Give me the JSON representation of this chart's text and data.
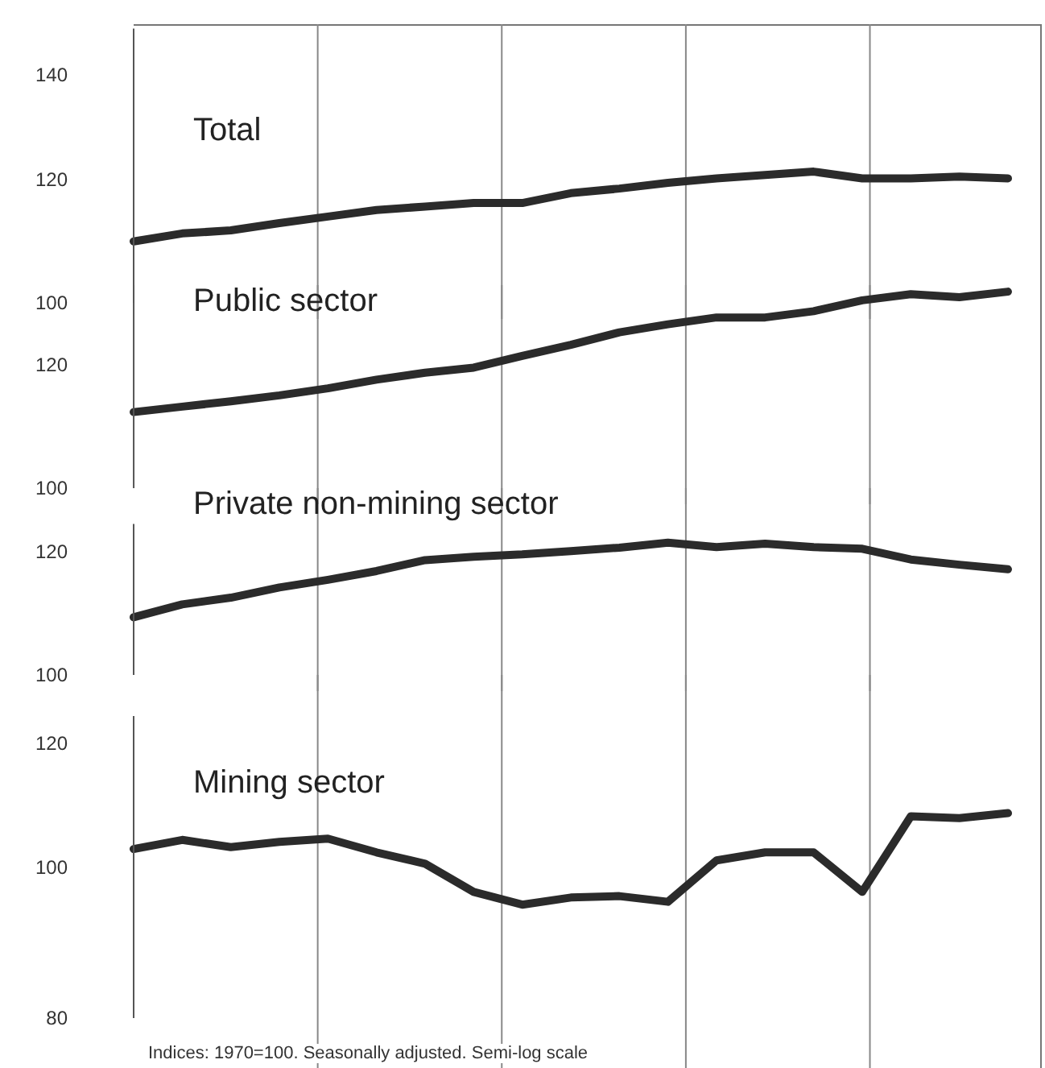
{
  "chart_data": [
    {
      "type": "line",
      "title": "Total",
      "categories": [
        null,
        null,
        null,
        null,
        null,
        null,
        null,
        null,
        null,
        null,
        null,
        null,
        null,
        null,
        null,
        null,
        null,
        null,
        null
      ],
      "log": true,
      "ylim": [
        100,
        150
      ],
      "yticks": [
        100,
        120,
        140
      ],
      "grid": "x",
      "tick_labels": "y",
      "series": [
        {
          "color": "#2b2b2b",
          "values": [
            109.5,
            110.8,
            111.3,
            112.5,
            113.6,
            114.7,
            115.3,
            115.9,
            115.9,
            117.6,
            118.4,
            119.4,
            120.2,
            120.8,
            121.4,
            120.2,
            120.2,
            120.5,
            120.2
          ]
        }
      ]
    },
    {
      "type": "line",
      "title": "Public sector",
      "categories": [
        null,
        null,
        null,
        null,
        null,
        null,
        null,
        null,
        null,
        null,
        null,
        null,
        null,
        null,
        null,
        null,
        null,
        null,
        null
      ],
      "log": true,
      "ylim": [
        100,
        135
      ],
      "yticks": [
        100,
        120
      ],
      "grid": "x",
      "tick_labels": "y",
      "series": [
        {
          "color": "#2b2b2b",
          "values": [
            111.9,
            112.8,
            113.7,
            114.7,
            115.9,
            117.4,
            118.6,
            119.5,
            121.6,
            123.6,
            125.9,
            127.4,
            128.7,
            128.7,
            129.9,
            132.0,
            133.2,
            132.6,
            133.7
          ]
        }
      ]
    },
    {
      "type": "line",
      "title": "Private non-mining sector",
      "categories": [
        null,
        null,
        null,
        null,
        null,
        null,
        null,
        null,
        null,
        null,
        null,
        null,
        null,
        null,
        null,
        null,
        null,
        null,
        null
      ],
      "log": true,
      "ylim": [
        100,
        125
      ],
      "yticks": [
        100,
        120
      ],
      "grid": "x",
      "tick_labels": "y",
      "series": [
        {
          "color": "#2b2b2b",
          "values": [
            108.9,
            111.0,
            112.1,
            113.8,
            115.1,
            116.6,
            118.5,
            119.1,
            119.5,
            120.1,
            120.7,
            121.6,
            120.8,
            121.4,
            120.8,
            120.5,
            118.6,
            117.7,
            116.9
          ]
        }
      ]
    },
    {
      "type": "line",
      "title": "Mining sector",
      "categories": [
        null,
        null,
        null,
        null,
        null,
        null,
        null,
        null,
        null,
        null,
        null,
        null,
        null,
        null,
        null,
        null,
        null,
        null,
        null
      ],
      "log": true,
      "ylim": [
        80,
        125
      ],
      "yticks": [
        80,
        100,
        120
      ],
      "grid": "x",
      "tick_labels": "y",
      "annotations": [
        "Indices: 1970=100. Seasonally adjusted. Semi-log scale"
      ],
      "series": [
        {
          "color": "#2b2b2b",
          "values": [
            102.7,
            104.1,
            103.0,
            103.8,
            104.3,
            102.2,
            100.5,
            96.4,
            94.6,
            95.6,
            95.8,
            95.0,
            101.0,
            102.2,
            102.2,
            96.4,
            107.8,
            107.5,
            108.3
          ]
        }
      ]
    }
  ]
}
